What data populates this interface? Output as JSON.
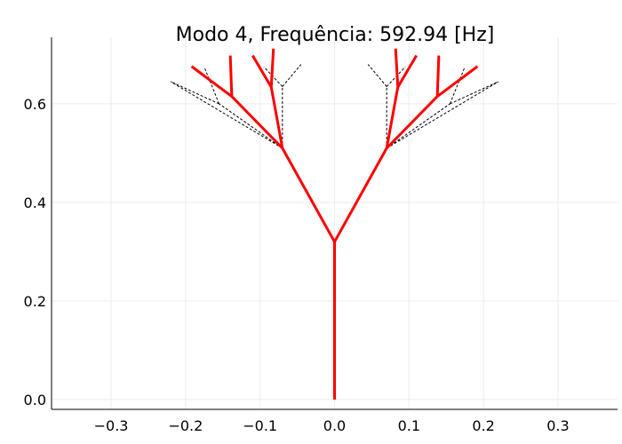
{
  "chart_data": {
    "type": "line",
    "title": "Modo 4, Frequência: 592.94 [Hz]",
    "xlabel": "",
    "ylabel": "",
    "xlim": [
      -0.38,
      0.38
    ],
    "ylim": [
      -0.02,
      0.735
    ],
    "xticks": [
      -0.3,
      -0.2,
      -0.1,
      0.0,
      0.1,
      0.2,
      0.3
    ],
    "xtick_labels": [
      "−0.3",
      "−0.2",
      "−0.1",
      "0.0",
      "0.1",
      "0.2",
      "0.3"
    ],
    "yticks": [
      0.0,
      0.2,
      0.4,
      0.6
    ],
    "ytick_labels": [
      "0.0",
      "0.2",
      "0.4",
      "0.6"
    ],
    "grid": true,
    "legend": "none",
    "series": [
      {
        "style": "black dashed (undeformed)",
        "color": "#000000",
        "segments": [
          [
            [
              0,
              0
            ],
            [
              0,
              0.32
            ]
          ],
          [
            [
              0,
              0.32
            ],
            [
              -0.07,
              0.51
            ]
          ],
          [
            [
              0,
              0.32
            ],
            [
              0.07,
              0.51
            ]
          ],
          [
            [
              -0.07,
              0.51
            ],
            [
              -0.22,
              0.645
            ]
          ],
          [
            [
              -0.07,
              0.51
            ],
            [
              -0.155,
              0.6
            ]
          ],
          [
            [
              -0.07,
              0.51
            ],
            [
              -0.07,
              0.635
            ]
          ],
          [
            [
              -0.155,
              0.6
            ],
            [
              -0.22,
              0.645
            ]
          ],
          [
            [
              -0.155,
              0.6
            ],
            [
              -0.175,
              0.675
            ]
          ],
          [
            [
              -0.07,
              0.635
            ],
            [
              -0.095,
              0.675
            ]
          ],
          [
            [
              -0.07,
              0.635
            ],
            [
              -0.045,
              0.68
            ]
          ],
          [
            [
              0.07,
              0.51
            ],
            [
              0.22,
              0.645
            ]
          ],
          [
            [
              0.07,
              0.51
            ],
            [
              0.155,
              0.6
            ]
          ],
          [
            [
              0.07,
              0.51
            ],
            [
              0.07,
              0.635
            ]
          ],
          [
            [
              0.155,
              0.6
            ],
            [
              0.22,
              0.645
            ]
          ],
          [
            [
              0.155,
              0.6
            ],
            [
              0.175,
              0.675
            ]
          ],
          [
            [
              0.07,
              0.635
            ],
            [
              0.095,
              0.675
            ]
          ],
          [
            [
              0.07,
              0.635
            ],
            [
              0.045,
              0.68
            ]
          ]
        ]
      },
      {
        "style": "red solid (mode shape)",
        "color": "#ff0000",
        "segments": [
          [
            [
              0,
              0
            ],
            [
              0,
              0.32
            ]
          ],
          [
            [
              0,
              0.32
            ],
            [
              -0.07,
              0.51
            ]
          ],
          [
            [
              0,
              0.32
            ],
            [
              0.07,
              0.51
            ]
          ],
          [
            [
              -0.07,
              0.51
            ],
            [
              -0.138,
              0.615
            ]
          ],
          [
            [
              -0.138,
              0.615
            ],
            [
              -0.192,
              0.676
            ]
          ],
          [
            [
              -0.138,
              0.615
            ],
            [
              -0.14,
              0.698
            ]
          ],
          [
            [
              -0.07,
              0.51
            ],
            [
              -0.085,
              0.634
            ]
          ],
          [
            [
              -0.085,
              0.634
            ],
            [
              -0.11,
              0.698
            ]
          ],
          [
            [
              -0.085,
              0.634
            ],
            [
              -0.082,
              0.712
            ]
          ],
          [
            [
              0.07,
              0.51
            ],
            [
              0.138,
              0.615
            ]
          ],
          [
            [
              0.138,
              0.615
            ],
            [
              0.192,
              0.676
            ]
          ],
          [
            [
              0.138,
              0.615
            ],
            [
              0.14,
              0.698
            ]
          ],
          [
            [
              0.07,
              0.51
            ],
            [
              0.085,
              0.634
            ]
          ],
          [
            [
              0.085,
              0.634
            ],
            [
              0.11,
              0.698
            ]
          ],
          [
            [
              0.085,
              0.634
            ],
            [
              0.082,
              0.712
            ]
          ]
        ]
      }
    ]
  }
}
